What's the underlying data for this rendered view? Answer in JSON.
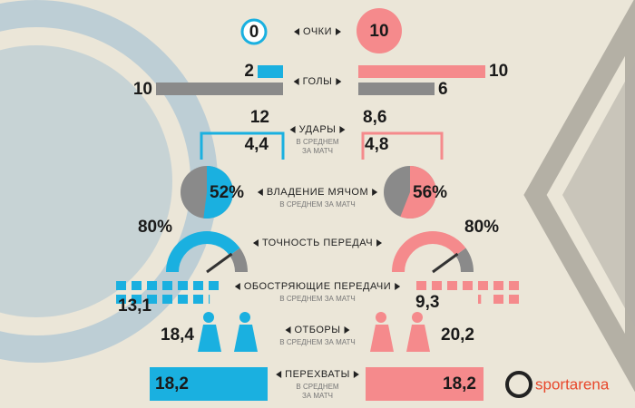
{
  "points": {
    "label": "ОЧКИ",
    "left": 0,
    "right": 10
  },
  "goals": {
    "label": "ГОЛЫ",
    "left_scored": 2,
    "left_conceded": 10,
    "right_scored": 10,
    "right_conceded": 6
  },
  "shots": {
    "label": "УДАРЫ",
    "sub": [
      "В СРЕДНЕМ",
      "ЗА МАТЧ"
    ],
    "left_total": 12,
    "left_avg": {
      "value": 4.4,
      "label": "4,4"
    },
    "right_total": {
      "value": 8.6,
      "label": "8,6"
    },
    "right_avg": {
      "value": 4.8,
      "label": "4,8"
    }
  },
  "possession": {
    "label": "ВЛАДЕНИЕ МЯЧОМ",
    "sub": [
      "В СРЕДНЕМ ЗА МАТЧ"
    ],
    "left": {
      "value": 52,
      "label": "52%"
    },
    "right": {
      "value": 56,
      "label": "56%"
    }
  },
  "pass_accuracy": {
    "label": "ТОЧНОСТЬ ПЕРЕДАЧ",
    "left": {
      "value": 80,
      "label": "80%"
    },
    "right": {
      "value": 80,
      "label": "80%"
    }
  },
  "key_passes": {
    "label": "ОБОСТРЯЮЩИЕ ПЕРЕДАЧИ",
    "sub": [
      "В СРЕДНЕМ ЗА МАТЧ"
    ],
    "left": {
      "value": 13.1,
      "label": "13,1"
    },
    "right": {
      "value": 9.3,
      "label": "9,3"
    }
  },
  "tackles": {
    "label": "ОТБОРЫ",
    "sub": [
      "В СРЕДНЕМ ЗА МАТЧ"
    ],
    "left": {
      "value": 18.4,
      "label": "18,4"
    },
    "right": {
      "value": 20.2,
      "label": "20,2"
    }
  },
  "interceptions": {
    "label": "ПЕРЕХВАТЫ",
    "sub": [
      "В СРЕДНЕМ",
      "ЗА МАТЧ"
    ],
    "left": {
      "value": 18.2,
      "label": "18,2"
    },
    "right": {
      "value": 18.2,
      "label": "18,2"
    }
  },
  "brand": "sportarena",
  "colors": {
    "left": "#1ab0e0",
    "right": "#f58a8c",
    "neutral": "#8a8a8a"
  }
}
